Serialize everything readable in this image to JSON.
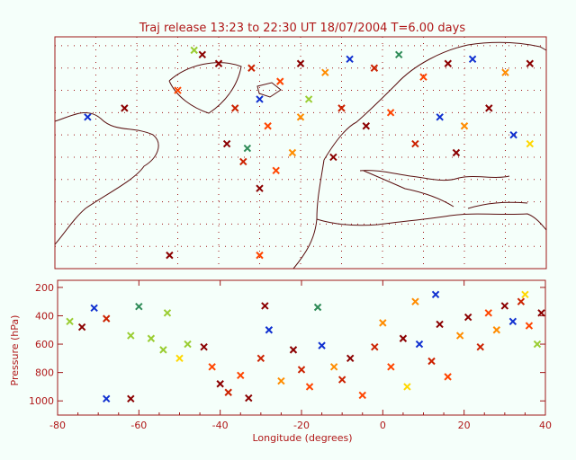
{
  "chart_data": [
    {
      "type": "scatter",
      "title": "Traj release 13:23 to 22:30 UT 18/07/2004    T=6.00 days",
      "panel": "map",
      "xlim": [
        -80,
        40
      ],
      "ylim": [
        20,
        72
      ],
      "colors": [
        "#8b0000",
        "#cc2200",
        "#ff4500",
        "#ff8c00",
        "#1030d0",
        "#2e8b57",
        "#9acd32",
        "#ffd700"
      ],
      "frame_color": "#a01818",
      "coast_color": "#5a1010",
      "grid": true,
      "points": [
        {
          "c": "#8b0000",
          "x": -40,
          "y": 66
        },
        {
          "c": "#cc2200",
          "x": -32,
          "y": 65
        },
        {
          "c": "#ff4500",
          "x": -25,
          "y": 62
        },
        {
          "c": "#8b0000",
          "x": -20,
          "y": 66
        },
        {
          "c": "#ff8c00",
          "x": -14,
          "y": 64
        },
        {
          "c": "#1030d0",
          "x": -8,
          "y": 67
        },
        {
          "c": "#cc2200",
          "x": -2,
          "y": 65
        },
        {
          "c": "#2e8b57",
          "x": 4,
          "y": 68
        },
        {
          "c": "#ff4500",
          "x": 10,
          "y": 63
        },
        {
          "c": "#8b0000",
          "x": 16,
          "y": 66
        },
        {
          "c": "#1030d0",
          "x": 22,
          "y": 67
        },
        {
          "c": "#ff8c00",
          "x": 30,
          "y": 64
        },
        {
          "c": "#8b0000",
          "x": 36,
          "y": 66
        },
        {
          "c": "#cc2200",
          "x": -36,
          "y": 56
        },
        {
          "c": "#ff4500",
          "x": -28,
          "y": 52
        },
        {
          "c": "#8b0000",
          "x": -38,
          "y": 48
        },
        {
          "c": "#1030d0",
          "x": -30,
          "y": 58
        },
        {
          "c": "#ff8c00",
          "x": -20,
          "y": 54
        },
        {
          "c": "#cc2200",
          "x": -10,
          "y": 56
        },
        {
          "c": "#8b0000",
          "x": -4,
          "y": 52
        },
        {
          "c": "#ff4500",
          "x": 2,
          "y": 55
        },
        {
          "c": "#1030d0",
          "x": 14,
          "y": 54
        },
        {
          "c": "#ff8c00",
          "x": 20,
          "y": 52
        },
        {
          "c": "#8b0000",
          "x": 26,
          "y": 56
        },
        {
          "c": "#1030d0",
          "x": 32,
          "y": 50
        },
        {
          "c": "#ffd700",
          "x": 36,
          "y": 48
        },
        {
          "c": "#cc2200",
          "x": -34,
          "y": 44
        },
        {
          "c": "#ff4500",
          "x": -26,
          "y": 42
        },
        {
          "c": "#8b0000",
          "x": -30,
          "y": 38
        },
        {
          "c": "#ff8c00",
          "x": -22,
          "y": 46
        },
        {
          "c": "#9acd32",
          "x": -18,
          "y": 58
        },
        {
          "c": "#2e8b57",
          "x": -33,
          "y": 47
        },
        {
          "c": "#8b0000",
          "x": -12,
          "y": 45
        },
        {
          "c": "#cc2200",
          "x": 8,
          "y": 48
        },
        {
          "c": "#8b0000",
          "x": 18,
          "y": 46
        },
        {
          "c": "#ff4500",
          "x": -50,
          "y": 60
        },
        {
          "c": "#8b0000",
          "x": -63,
          "y": 56
        },
        {
          "c": "#1030d0",
          "x": -72,
          "y": 54
        },
        {
          "c": "#8b0000",
          "x": -52,
          "y": 23
        },
        {
          "c": "#ff4500",
          "x": -30,
          "y": 23
        },
        {
          "c": "#9acd32",
          "x": -46,
          "y": 69
        },
        {
          "c": "#8b0000",
          "x": -44,
          "y": 68
        }
      ]
    },
    {
      "type": "scatter",
      "panel": "profile",
      "xlabel": "Longitude  (degrees)",
      "ylabel": "Pressure  (hPa)",
      "xlim": [
        -80,
        40
      ],
      "ylim": [
        1100,
        150
      ],
      "xticks": [
        -80,
        -60,
        -40,
        -20,
        0,
        20,
        40
      ],
      "xtick_labels": [
        "-80",
        "-60",
        "-40",
        "-20",
        "0",
        "20",
        "40"
      ],
      "yticks": [
        200,
        400,
        600,
        800,
        1000
      ],
      "ytick_labels": [
        "200",
        "400",
        "600",
        "800",
        "1000"
      ],
      "points": [
        {
          "c": "#9acd32",
          "x": -77,
          "y": 440
        },
        {
          "c": "#8b0000",
          "x": -74,
          "y": 480
        },
        {
          "c": "#1030d0",
          "x": -71,
          "y": 345
        },
        {
          "c": "#cc2200",
          "x": -68,
          "y": 420
        },
        {
          "c": "#1030d0",
          "x": -68,
          "y": 985
        },
        {
          "c": "#8b0000",
          "x": -62,
          "y": 985
        },
        {
          "c": "#2e8b57",
          "x": -60,
          "y": 335
        },
        {
          "c": "#9acd32",
          "x": -62,
          "y": 540
        },
        {
          "c": "#9acd32",
          "x": -57,
          "y": 560
        },
        {
          "c": "#9acd32",
          "x": -54,
          "y": 640
        },
        {
          "c": "#ffd700",
          "x": -50,
          "y": 700
        },
        {
          "c": "#9acd32",
          "x": -53,
          "y": 380
        },
        {
          "c": "#9acd32",
          "x": -48,
          "y": 600
        },
        {
          "c": "#8b0000",
          "x": -44,
          "y": 620
        },
        {
          "c": "#ff4500",
          "x": -42,
          "y": 760
        },
        {
          "c": "#8b0000",
          "x": -40,
          "y": 880
        },
        {
          "c": "#cc2200",
          "x": -38,
          "y": 940
        },
        {
          "c": "#ff4500",
          "x": -35,
          "y": 820
        },
        {
          "c": "#8b0000",
          "x": -33,
          "y": 980
        },
        {
          "c": "#cc2200",
          "x": -30,
          "y": 700
        },
        {
          "c": "#1030d0",
          "x": -28,
          "y": 500
        },
        {
          "c": "#ff8c00",
          "x": -25,
          "y": 860
        },
        {
          "c": "#8b0000",
          "x": -22,
          "y": 640
        },
        {
          "c": "#cc2200",
          "x": -20,
          "y": 780
        },
        {
          "c": "#ff4500",
          "x": -18,
          "y": 900
        },
        {
          "c": "#1030d0",
          "x": -15,
          "y": 610
        },
        {
          "c": "#ff8c00",
          "x": -12,
          "y": 760
        },
        {
          "c": "#cc2200",
          "x": -10,
          "y": 850
        },
        {
          "c": "#8b0000",
          "x": -8,
          "y": 700
        },
        {
          "c": "#ff4500",
          "x": -5,
          "y": 960
        },
        {
          "c": "#2e8b57",
          "x": -16,
          "y": 340
        },
        {
          "c": "#8b0000",
          "x": -29,
          "y": 330
        },
        {
          "c": "#cc2200",
          "x": -2,
          "y": 620
        },
        {
          "c": "#ff8c00",
          "x": 0,
          "y": 450
        },
        {
          "c": "#ff4500",
          "x": 2,
          "y": 760
        },
        {
          "c": "#8b0000",
          "x": 5,
          "y": 560
        },
        {
          "c": "#ffd700",
          "x": 6,
          "y": 900
        },
        {
          "c": "#ff8c00",
          "x": 8,
          "y": 300
        },
        {
          "c": "#1030d0",
          "x": 9,
          "y": 600
        },
        {
          "c": "#cc2200",
          "x": 12,
          "y": 720
        },
        {
          "c": "#8b0000",
          "x": 14,
          "y": 460
        },
        {
          "c": "#ff4500",
          "x": 16,
          "y": 830
        },
        {
          "c": "#1030d0",
          "x": 13,
          "y": 250
        },
        {
          "c": "#ff8c00",
          "x": 19,
          "y": 540
        },
        {
          "c": "#8b0000",
          "x": 21,
          "y": 410
        },
        {
          "c": "#cc2200",
          "x": 24,
          "y": 620
        },
        {
          "c": "#ff4500",
          "x": 26,
          "y": 380
        },
        {
          "c": "#ff8c00",
          "x": 28,
          "y": 500
        },
        {
          "c": "#8b0000",
          "x": 30,
          "y": 330
        },
        {
          "c": "#1030d0",
          "x": 32,
          "y": 440
        },
        {
          "c": "#cc2200",
          "x": 34,
          "y": 300
        },
        {
          "c": "#ff4500",
          "x": 36,
          "y": 470
        },
        {
          "c": "#9acd32",
          "x": 38,
          "y": 600
        },
        {
          "c": "#ffd700",
          "x": 35,
          "y": 250
        },
        {
          "c": "#8b0000",
          "x": 39,
          "y": 380
        }
      ]
    }
  ]
}
